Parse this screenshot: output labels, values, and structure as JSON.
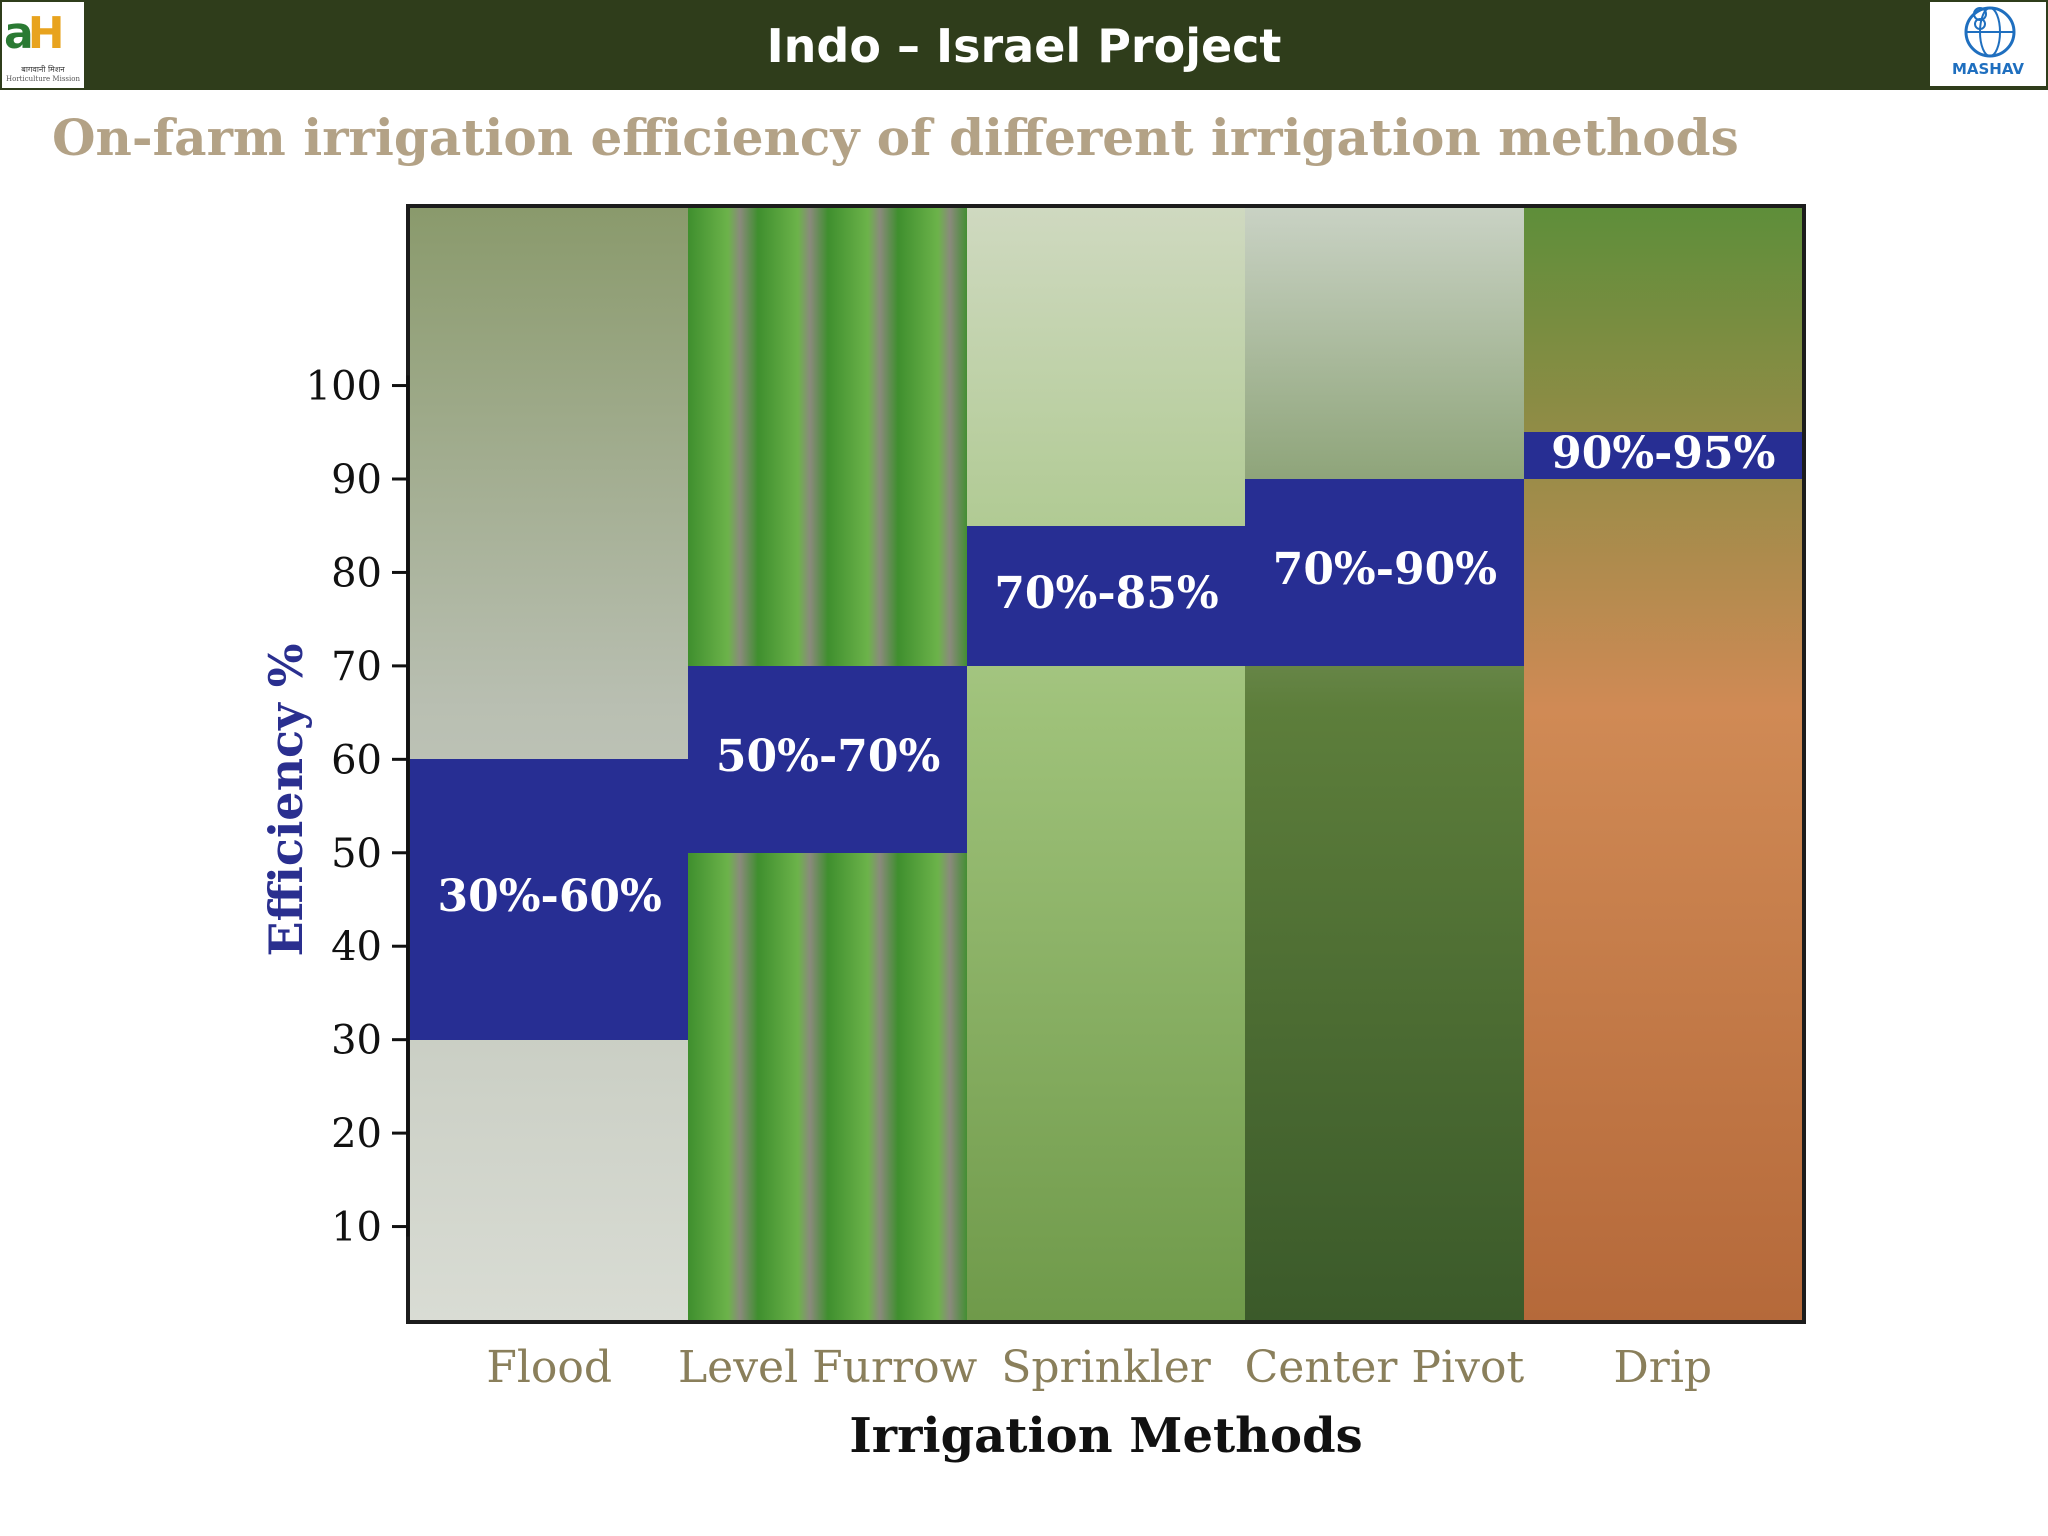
{
  "header": {
    "title": "Indo – Israel Project"
  },
  "logos": {
    "left": {
      "mark": "ah-horticulture-mission-logo",
      "caption_line1": "बागवानी मिशन",
      "caption_line2": "Horticulture Mission"
    },
    "right": {
      "mark": "mashav-logo",
      "text": "MASHAV"
    }
  },
  "subtitle": "On-farm irrigation efficiency of different irrigation methods",
  "chart_data": {
    "type": "bar",
    "style": "floating-range",
    "xlabel": "Irrigation Methods",
    "ylabel": "Efficiency %",
    "yticks": [
      10,
      20,
      30,
      40,
      50,
      60,
      70,
      80,
      90,
      100
    ],
    "ylim": [
      0,
      119
    ],
    "categories": [
      "Flood",
      "Level Furrow",
      "Sprinkler",
      "Center Pivot",
      "Drip"
    ],
    "ranges": [
      {
        "category": "Flood",
        "low": 30,
        "high": 60,
        "label": "30%-60%"
      },
      {
        "category": "Level Furrow",
        "low": 50,
        "high": 70,
        "label": "50%-70%"
      },
      {
        "category": "Sprinkler",
        "low": 70,
        "high": 85,
        "label": "70%-85%"
      },
      {
        "category": "Center Pivot",
        "low": 70,
        "high": 90,
        "label": "70%-90%"
      },
      {
        "category": "Drip",
        "low": 90,
        "high": 95,
        "label": "90%-95%"
      }
    ],
    "band_color": "#272e93",
    "grid": false,
    "legend": "none"
  }
}
